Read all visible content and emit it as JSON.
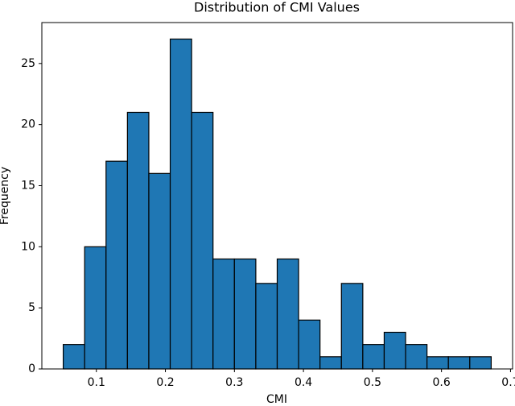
{
  "chart_data": {
    "type": "histogram",
    "title": "Distribution of CMI Values",
    "x_label": "CMI",
    "y_label": "Frequency",
    "bins": [
      0.052,
      0.083,
      0.114,
      0.145,
      0.176,
      0.207,
      0.238,
      0.269,
      0.3,
      0.331,
      0.362,
      0.393,
      0.424,
      0.455,
      0.486,
      0.517,
      0.548,
      0.579,
      0.61,
      0.641,
      0.672
    ],
    "values": [
      2,
      10,
      17,
      21,
      16,
      27,
      21,
      9,
      9,
      7,
      9,
      4,
      1,
      7,
      2,
      3,
      2,
      1,
      1,
      1
    ],
    "color": "#1f77b4",
    "edgecolor": "#000000",
    "xlim": [
      0.021,
      0.703
    ],
    "xticks": [
      0.1,
      0.2,
      0.3,
      0.4,
      0.5,
      0.6,
      0.7
    ],
    "ylim": [
      0,
      28.35
    ],
    "yticks": [
      0,
      5,
      10,
      15,
      20,
      25
    ],
    "grid": false
  }
}
